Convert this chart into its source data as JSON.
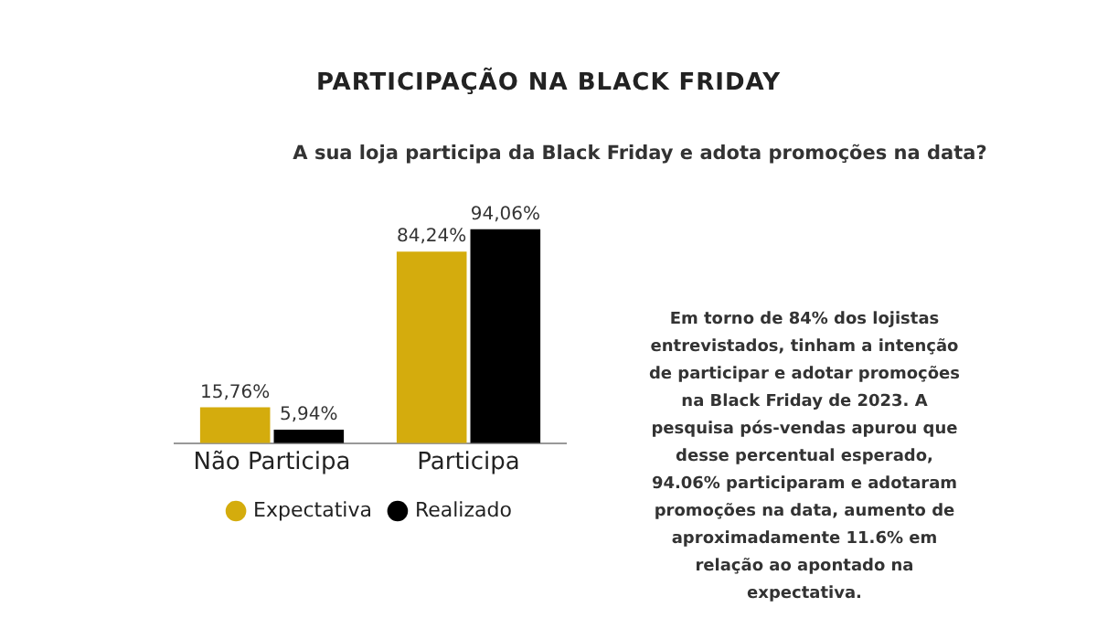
{
  "chart_data": {
    "type": "bar",
    "title": "PARTICIPAÇÃO NA BLACK FRIDAY",
    "subtitle": "A sua loja participa da Black Friday e adota promoções na data?",
    "categories": [
      "Não Participa",
      "Participa"
    ],
    "series": [
      {
        "name": "Expectativa",
        "color": "#d4ac0d",
        "values": [
          15.76,
          84.24
        ],
        "value_labels": [
          "15,76%",
          "84,24%"
        ]
      },
      {
        "name": "Realizado",
        "color": "#000000",
        "values": [
          5.94,
          94.06
        ],
        "value_labels": [
          "5,94%",
          "94,06%"
        ]
      }
    ],
    "legend": "bottom",
    "grid": false,
    "annotations": [
      "Em torno de 84% dos lojistas entrevistados, tinham a intenção de participar e adotar promoções na Black Friday de 2023. A pesquisa pós-vendas apurou que desse percentual esperado, 94.06% participaram e adotaram promoções na data, aumento de aproximadamente 11.6% em relação ao apontado na expectativa."
    ]
  }
}
